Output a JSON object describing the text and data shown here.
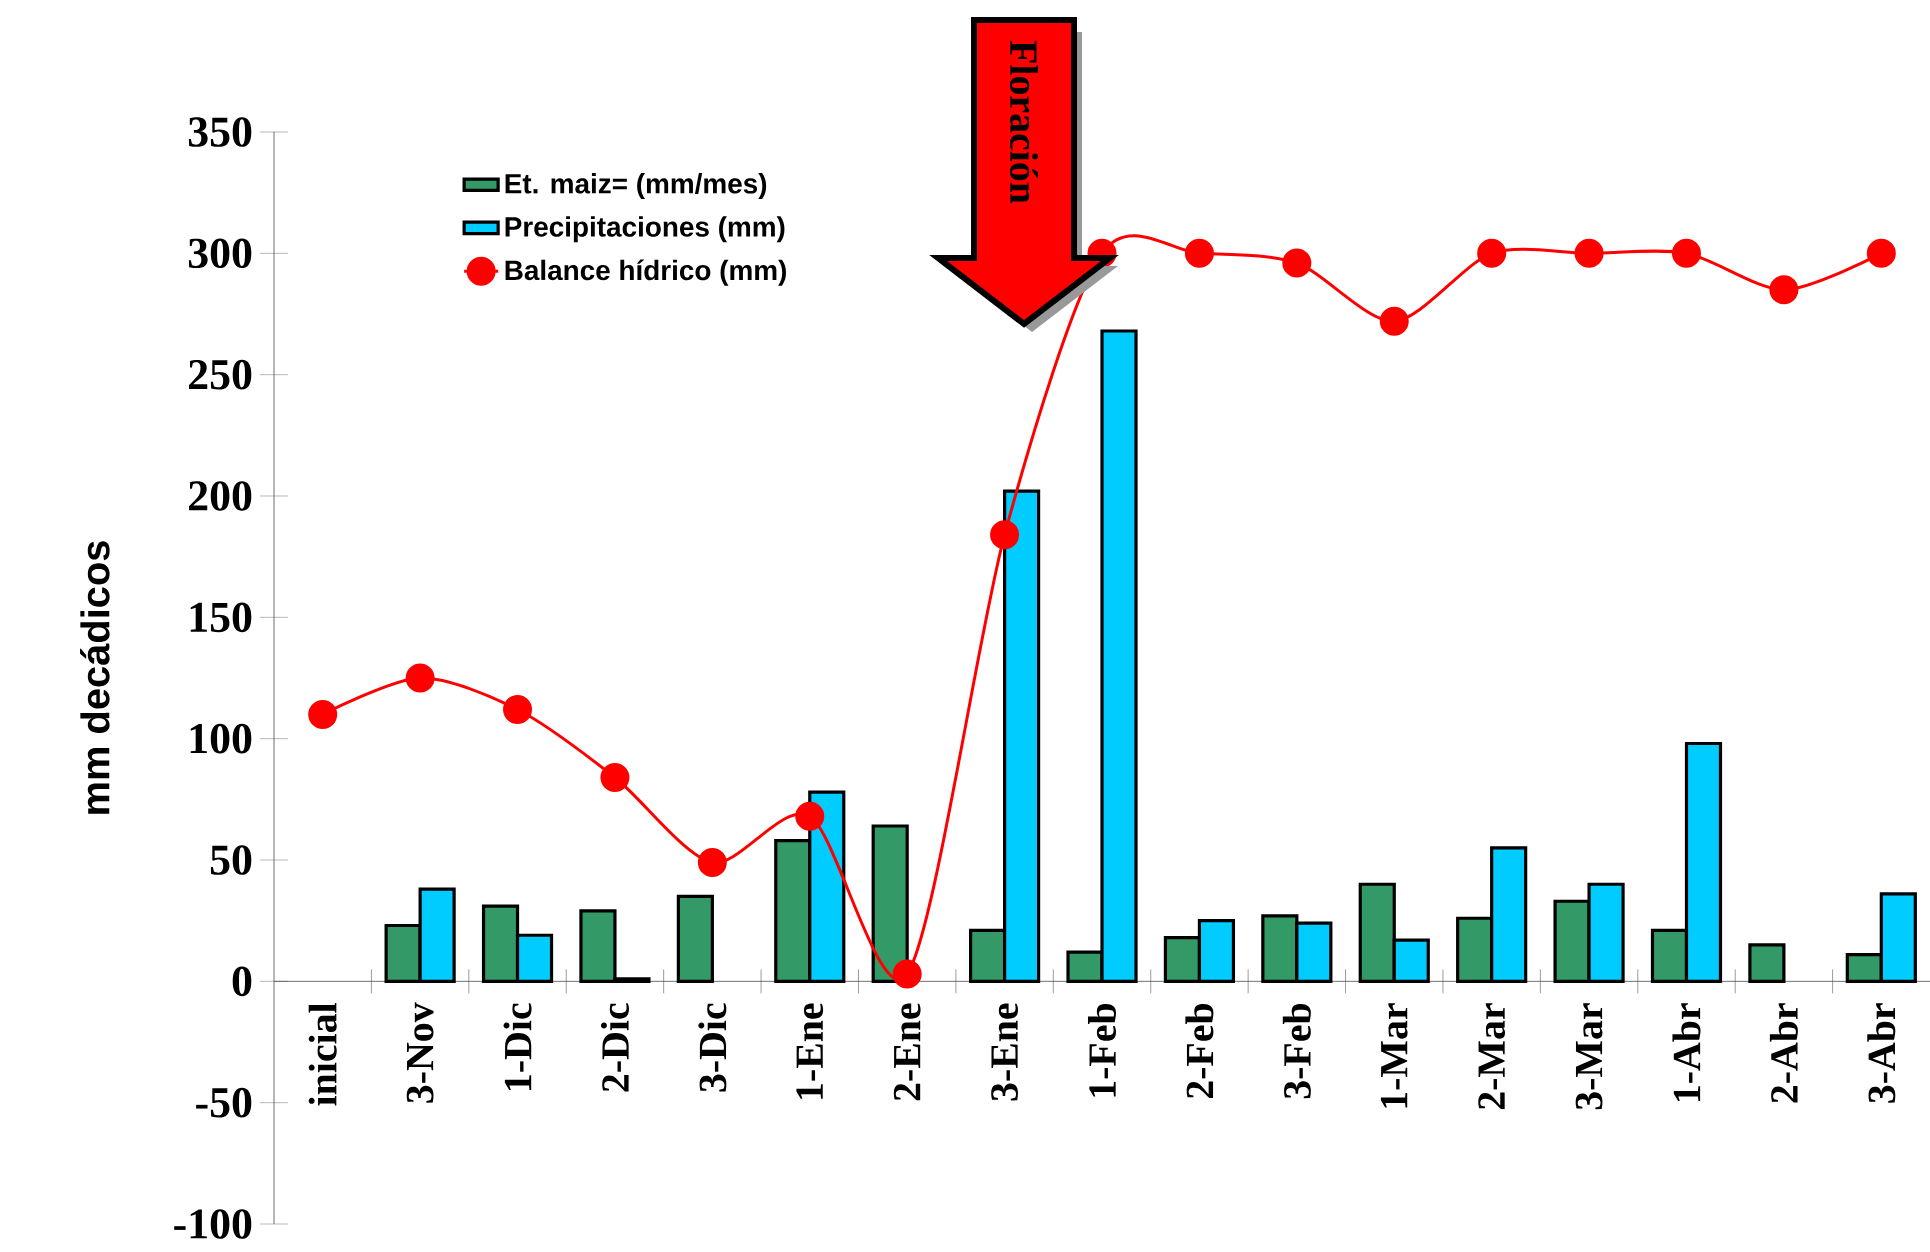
{
  "chart_data": {
    "type": "bar",
    "ylabel": "mm decádicos",
    "categories": [
      "inicial",
      "3-Nov",
      "1-Dic",
      "2-Dic",
      "3-Dic",
      "1-Ene",
      "2-Ene",
      "3-Ene",
      "1-Feb",
      "2-Feb",
      "3-Feb",
      "1-Mar",
      "2-Mar",
      "3-Mar",
      "1-Abr",
      "2-Abr",
      "3-Abr"
    ],
    "series": [
      {
        "name": "Et. maiz= (mm/mes)",
        "color": "#339966",
        "values": [
          null,
          23,
          31,
          29,
          35,
          58,
          64,
          21,
          12,
          18,
          27,
          40,
          26,
          33,
          21,
          15,
          11
        ]
      },
      {
        "name": "Precipitaciones (mm)",
        "color": "#00ccff",
        "values": [
          null,
          38,
          19,
          1,
          null,
          78,
          null,
          202,
          268,
          25,
          24,
          17,
          55,
          40,
          98,
          null,
          36
        ]
      },
      {
        "name": "Balance hídrico (mm)",
        "type": "line",
        "color": "#ff0000",
        "marker": "circle",
        "values": [
          110,
          125,
          112,
          84,
          49,
          68,
          3,
          184,
          300,
          300,
          296,
          272,
          300,
          300,
          300,
          285,
          300
        ]
      }
    ],
    "ylim": [
      -100,
      350
    ],
    "yticks": [
      -100,
      -50,
      0,
      50,
      100,
      150,
      200,
      250,
      300,
      350
    ],
    "legend": "top left",
    "annotations": [
      "Floración"
    ]
  }
}
